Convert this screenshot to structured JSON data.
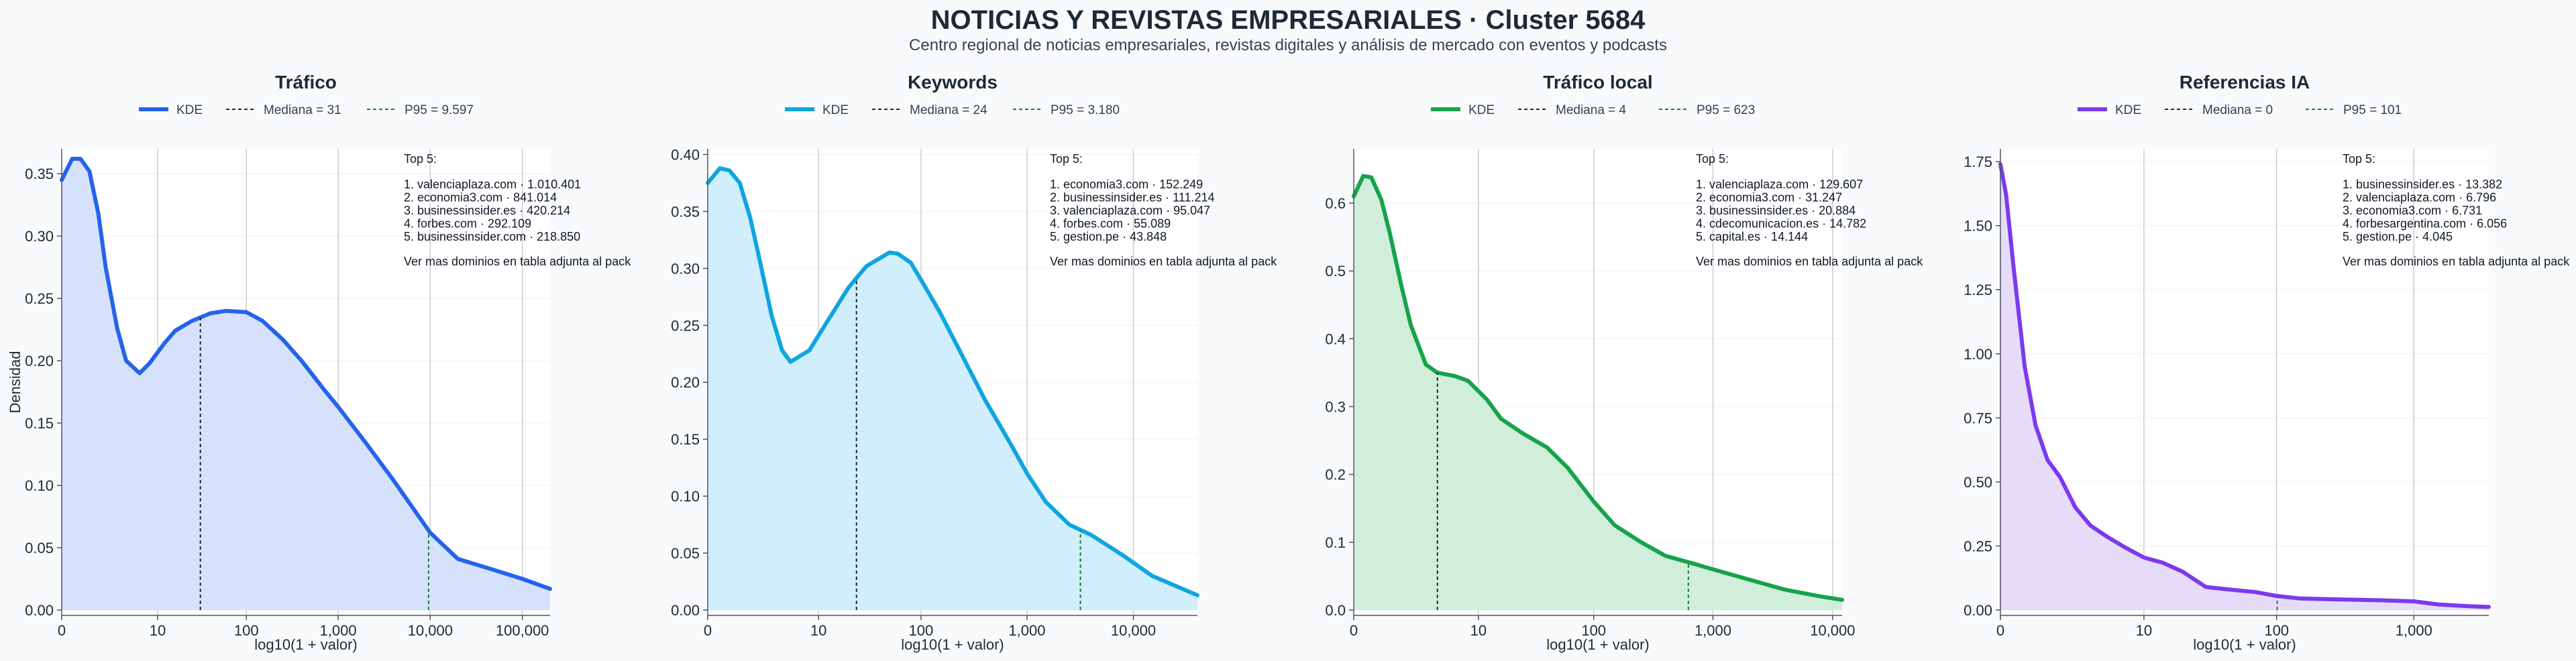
{
  "page": {
    "title": "NOTICIAS Y REVISTAS EMPRESARIALES · Cluster 5684",
    "subtitle": "Centro regional de noticias empresariales, revistas digitales y análisis de mercado con eventos y podcasts"
  },
  "chart_data": [
    {
      "type": "area",
      "title": "Tráfico",
      "xlabel": "log10(1 + valor)",
      "ylabel": "Densidad",
      "x_scale": "log10(1+x)",
      "xlim": [
        0,
        200000
      ],
      "ylim": [
        0,
        0.37
      ],
      "x_ticks": [
        0,
        10,
        100,
        1000,
        10000,
        100000
      ],
      "x_tick_labels": [
        "0",
        "10",
        "100",
        "1,000",
        "10,000",
        "100,000"
      ],
      "y_ticks": [
        0,
        0.05,
        0.1,
        0.15,
        0.2,
        0.25,
        0.3,
        0.35
      ],
      "y_tick_labels": [
        "0.00",
        "0.05",
        "0.10",
        "0.15",
        "0.20",
        "0.25",
        "0.30",
        "0.35"
      ],
      "color": "#2563eb",
      "fill": "#d6e2fb",
      "legend": {
        "kde": "KDE",
        "median": "Mediana = 31",
        "p95": "P95 = 9.597"
      },
      "median": 31,
      "p95": 9597,
      "series": [
        {
          "x": [
            0,
            0.3,
            0.6,
            1,
            1.5,
            2,
            3,
            4,
            6,
            8,
            12,
            16,
            25,
            40,
            60,
            100,
            150,
            250,
            400,
            700,
            1000,
            2000,
            4000,
            10000,
            20000,
            50000,
            100000,
            200000
          ],
          "y": [
            0.345,
            0.362,
            0.362,
            0.352,
            0.318,
            0.275,
            0.226,
            0.2,
            0.19,
            0.198,
            0.214,
            0.224,
            0.232,
            0.238,
            0.24,
            0.239,
            0.232,
            0.217,
            0.2,
            0.177,
            0.163,
            0.134,
            0.104,
            0.062,
            0.041,
            0.032,
            0.025,
            0.017
          ]
        }
      ],
      "annotation": {
        "header": "Top 5:",
        "items": [
          "1. valenciaplaza.com · 1.010.401",
          "2. economia3.com · 841.014",
          "3. businessinsider.es · 420.214",
          "4. forbes.com · 292.109",
          "5. businessinsider.com · 218.850"
        ],
        "footer": "Ver mas dominios en tabla adjunta al pack"
      }
    },
    {
      "type": "area",
      "title": "Keywords",
      "xlabel": "log10(1 + valor)",
      "ylabel": "",
      "x_scale": "log10(1+x)",
      "xlim": [
        0,
        40000
      ],
      "ylim": [
        0,
        0.405
      ],
      "x_ticks": [
        0,
        10,
        100,
        1000,
        10000
      ],
      "x_tick_labels": [
        "0",
        "10",
        "100",
        "1,000",
        "10,000"
      ],
      "y_ticks": [
        0,
        0.05,
        0.1,
        0.15,
        0.2,
        0.25,
        0.3,
        0.35,
        0.4
      ],
      "y_tick_labels": [
        "0.00",
        "0.05",
        "0.10",
        "0.15",
        "0.20",
        "0.25",
        "0.30",
        "0.35",
        "0.40"
      ],
      "color": "#0ea5e0",
      "fill": "#d0eefb",
      "legend": {
        "kde": "KDE",
        "median": "Mediana = 24",
        "p95": "P95 = 3.180"
      },
      "median": 24,
      "p95": 3180,
      "series": [
        {
          "x": [
            0,
            0.3,
            0.6,
            1,
            1.5,
            2,
            3,
            4,
            5,
            8,
            12,
            20,
            30,
            50,
            60,
            80,
            100,
            150,
            250,
            400,
            700,
            1000,
            1500,
            2500,
            4000,
            8000,
            15000,
            40000
          ],
          "y": [
            0.375,
            0.388,
            0.386,
            0.375,
            0.345,
            0.312,
            0.258,
            0.228,
            0.218,
            0.228,
            0.252,
            0.283,
            0.302,
            0.314,
            0.313,
            0.305,
            0.29,
            0.262,
            0.222,
            0.185,
            0.146,
            0.12,
            0.095,
            0.075,
            0.066,
            0.048,
            0.03,
            0.013
          ]
        }
      ],
      "annotation": {
        "header": "Top 5:",
        "items": [
          "1. economia3.com · 152.249",
          "2. businessinsider.es · 111.214",
          "3. valenciaplaza.com · 95.047",
          "4. forbes.com · 55.089",
          "5. gestion.pe · 43.848"
        ],
        "footer": "Ver mas dominios en tabla adjunta al pack"
      }
    },
    {
      "type": "area",
      "title": "Tráfico local",
      "xlabel": "log10(1 + valor)",
      "ylabel": "",
      "x_scale": "log10(1+x)",
      "xlim": [
        0,
        12000
      ],
      "ylim": [
        0,
        0.68
      ],
      "x_ticks": [
        0,
        10,
        100,
        1000,
        10000
      ],
      "x_tick_labels": [
        "0",
        "10",
        "100",
        "1,000",
        "10,000"
      ],
      "y_ticks": [
        0,
        0.1,
        0.2,
        0.3,
        0.4,
        0.5,
        0.6
      ],
      "y_tick_labels": [
        "0.0",
        "0.1",
        "0.2",
        "0.3",
        "0.4",
        "0.5",
        "0.6"
      ],
      "color": "#16a34a",
      "fill": "#d1eedb",
      "legend": {
        "kde": "KDE",
        "median": "Mediana = 4",
        "p95": "P95 = 623"
      },
      "median": 4,
      "p95": 623,
      "series": [
        {
          "x": [
            0,
            0.2,
            0.4,
            0.7,
            1,
            1.5,
            2,
            3,
            4,
            6,
            8,
            12,
            16,
            25,
            40,
            60,
            100,
            150,
            250,
            400,
            700,
            1000,
            2000,
            4000,
            8000,
            12000
          ],
          "y": [
            0.61,
            0.64,
            0.638,
            0.605,
            0.556,
            0.478,
            0.42,
            0.362,
            0.35,
            0.345,
            0.338,
            0.31,
            0.282,
            0.26,
            0.24,
            0.21,
            0.16,
            0.125,
            0.1,
            0.08,
            0.068,
            0.06,
            0.045,
            0.03,
            0.02,
            0.015
          ]
        }
      ],
      "annotation": {
        "header": "Top 5:",
        "items": [
          "1. valenciaplaza.com · 129.607",
          "2. economia3.com · 31.247",
          "3. businessinsider.es · 20.884",
          "4. cdecomunicacion.es · 14.782",
          "5. capital.es · 14.144"
        ],
        "footer": "Ver mas dominios en tabla adjunta al pack"
      }
    },
    {
      "type": "area",
      "title": "Referencias IA",
      "xlabel": "log10(1 + valor)",
      "ylabel": "",
      "x_scale": "log10(1+x)",
      "xlim": [
        0,
        3500
      ],
      "ylim": [
        0,
        1.8
      ],
      "x_ticks": [
        0,
        10,
        100,
        1000
      ],
      "x_tick_labels": [
        "0",
        "10",
        "100",
        "1,000"
      ],
      "y_ticks": [
        0,
        0.25,
        0.5,
        0.75,
        1.0,
        1.25,
        1.5,
        1.75
      ],
      "y_tick_labels": [
        "0.00",
        "0.25",
        "0.50",
        "0.75",
        "1.00",
        "1.25",
        "1.50",
        "1.75"
      ],
      "color": "#7c3aed",
      "fill": "#e6dcfa",
      "legend": {
        "kde": "KDE",
        "median": "Mediana = 0",
        "p95": "P95 = 101"
      },
      "median": 0,
      "p95": 101,
      "series": [
        {
          "x": [
            0,
            0.1,
            0.25,
            0.5,
            0.8,
            1.2,
            1.7,
            2.5,
            3.5,
            5,
            7,
            10,
            14,
            20,
            30,
            45,
            70,
            100,
            150,
            250,
            400,
            600,
            1000,
            1500,
            2500,
            3500
          ],
          "y": [
            1.74,
            1.62,
            1.33,
            0.95,
            0.72,
            0.585,
            0.52,
            0.4,
            0.33,
            0.285,
            0.245,
            0.205,
            0.185,
            0.15,
            0.09,
            0.08,
            0.07,
            0.055,
            0.045,
            0.042,
            0.04,
            0.038,
            0.034,
            0.022,
            0.015,
            0.012
          ]
        }
      ],
      "annotation": {
        "header": "Top 5:",
        "items": [
          "1. businessinsider.es · 13.382",
          "2. valenciaplaza.com · 6.796",
          "3. economia3.com · 6.731",
          "4. forbesargentina.com · 6.056",
          "5. gestion.pe · 4.045"
        ],
        "footer": "Ver mas dominios en tabla adjunta al pack"
      }
    }
  ]
}
